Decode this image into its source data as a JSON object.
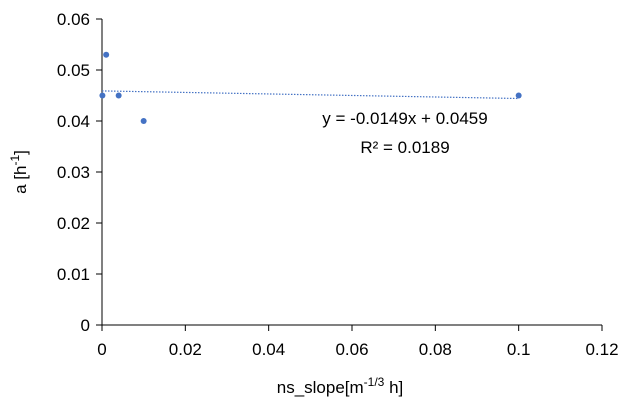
{
  "chart_data": {
    "type": "scatter",
    "title": "",
    "xlabel": {
      "base": "ns_slope[m",
      "sup": "-1/3",
      "tail": " h]"
    },
    "ylabel": {
      "base": "a [h",
      "sup": "-1",
      "tail": "]"
    },
    "xlim": [
      0,
      0.12
    ],
    "ylim": [
      0,
      0.06
    ],
    "x_ticks": [
      0,
      0.02,
      0.04,
      0.06,
      0.08,
      0.1,
      0.12
    ],
    "x_tick_labels": [
      "0",
      "0.02",
      "0.04",
      "0.06",
      "0.08",
      "0.1",
      "0.12"
    ],
    "y_ticks": [
      0,
      0.01,
      0.02,
      0.03,
      0.04,
      0.05,
      0.06
    ],
    "y_tick_labels": [
      "0",
      "0.01",
      "0.02",
      "0.03",
      "0.04",
      "0.05",
      "0.06"
    ],
    "grid": false,
    "legend": "none",
    "series": [
      {
        "points": [
          {
            "x": 0.0001,
            "y": 0.045
          },
          {
            "x": 0.001,
            "y": 0.053
          },
          {
            "x": 0.004,
            "y": 0.045
          },
          {
            "x": 0.01,
            "y": 0.04
          },
          {
            "x": 0.1,
            "y": 0.045
          }
        ],
        "color": "#4472C4"
      }
    ],
    "trendline": {
      "type": "linear",
      "slope": -0.0149,
      "intercept": 0.0459,
      "x_range": [
        0,
        0.1
      ],
      "color": "#4472C4",
      "style": "dotted",
      "equation_label": "y = -0.0149x + 0.0459",
      "r2_label": "R² = 0.0189"
    }
  }
}
